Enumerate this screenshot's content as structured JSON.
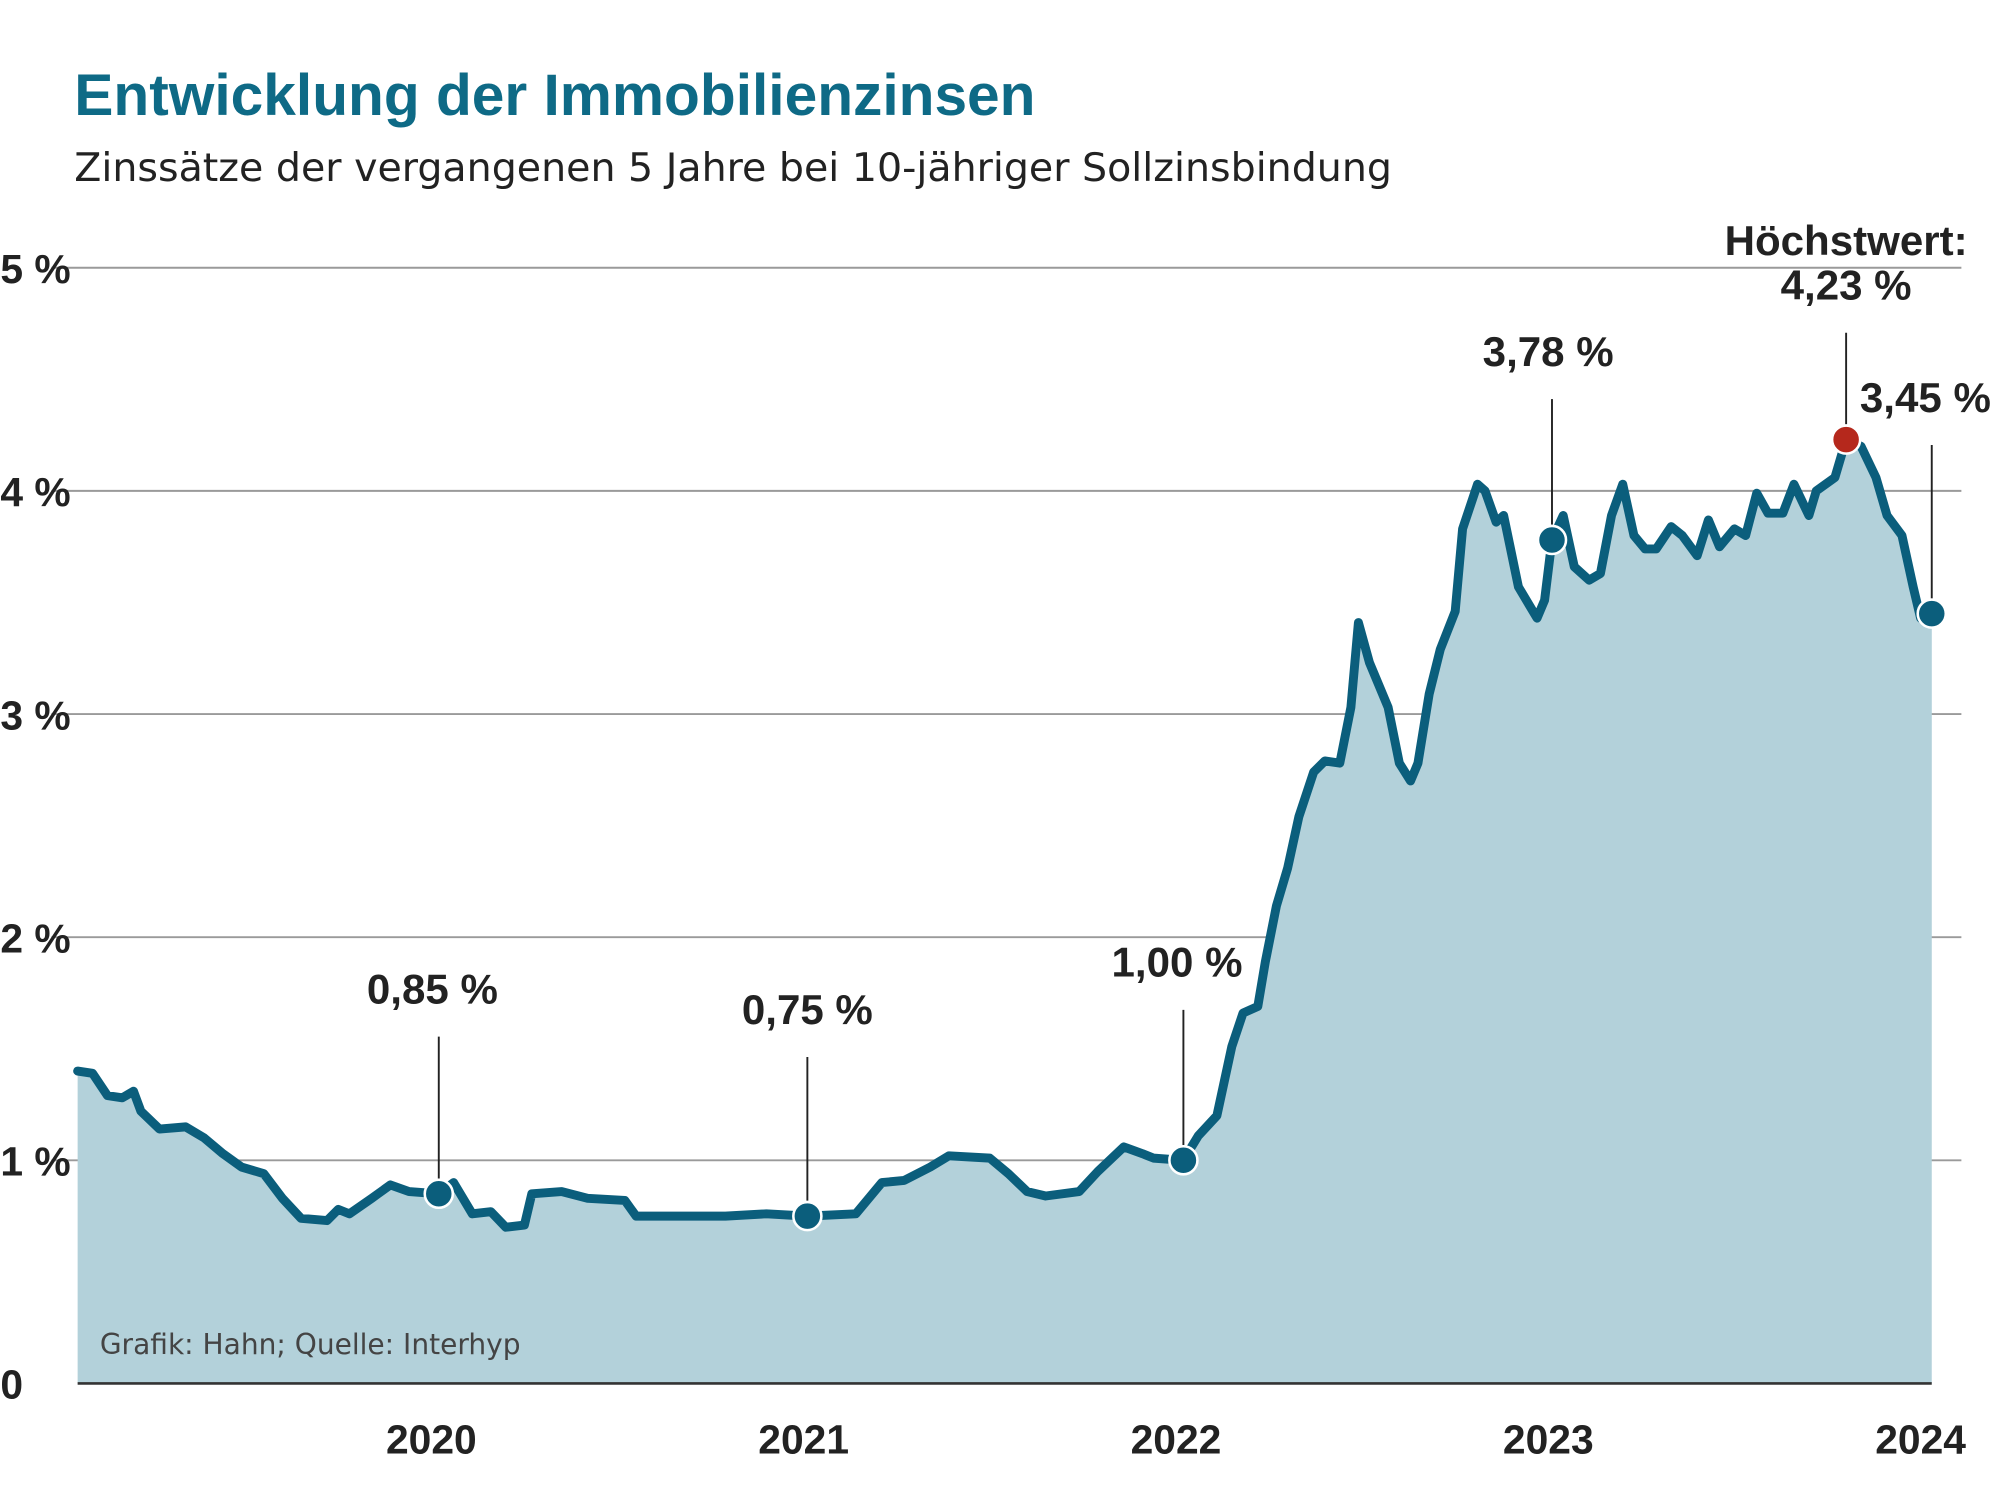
{
  "chart_data": {
    "type": "area",
    "title": "Entwicklung der Immobilienzinsen",
    "subtitle": "Zinssätze der vergangenen 5 Jahre bei 10-jähriger Sollzinsbindung",
    "source": "Grafik: Hahn; Quelle: Interhyp",
    "xlabel": "",
    "ylabel": "",
    "x_unit": "year",
    "xlim": [
      2019.05,
      2024.1
    ],
    "ylim": [
      0,
      5
    ],
    "grid": true,
    "x_ticks": [
      {
        "value": 2020,
        "label": "2020"
      },
      {
        "value": 2021,
        "label": "2021"
      },
      {
        "value": 2022,
        "label": "2022"
      },
      {
        "value": 2023,
        "label": "2023"
      },
      {
        "value": 2024,
        "label": "2024"
      }
    ],
    "y_ticks": [
      {
        "value": 0,
        "label": "0"
      },
      {
        "value": 1,
        "label": "1 %"
      },
      {
        "value": 2,
        "label": "2 %"
      },
      {
        "value": 3,
        "label": "3 %"
      },
      {
        "value": 4,
        "label": "4 %"
      },
      {
        "value": 5,
        "label": "5 %"
      }
    ],
    "colors": {
      "title": "#0e6a86",
      "line": "#0b5e7c",
      "fill": "#b3d1da",
      "grid": "#9a9a9a",
      "highlight": "#b5281c"
    },
    "series": [
      {
        "x": [
          2019.05,
          2019.09,
          2019.13,
          2019.17,
          2019.2,
          2019.22,
          2019.27,
          2019.34,
          2019.39,
          2019.44,
          2019.49,
          2019.55,
          2019.6,
          2019.65,
          2019.72,
          2019.75,
          2019.78,
          2019.84,
          2019.89,
          2019.94,
          2020.02,
          2020.06,
          2020.11,
          2020.16,
          2020.2,
          2020.25,
          2020.27,
          2020.35,
          2020.42,
          2020.52,
          2020.55,
          2020.66,
          2020.79,
          2020.9,
          2021.01,
          2021.14,
          2021.21,
          2021.27,
          2021.34,
          2021.39,
          2021.5,
          2021.55,
          2021.6,
          2021.65,
          2021.74,
          2021.79,
          2021.86,
          2021.91,
          2021.94,
          2022.02,
          2022.06,
          2022.11,
          2022.15,
          2022.18,
          2022.22,
          2022.24,
          2022.27,
          2022.3,
          2022.33,
          2022.37,
          2022.4,
          2022.44,
          2022.47,
          2022.49,
          2022.52,
          2022.57,
          2022.6,
          2022.63,
          2022.65,
          2022.68,
          2022.71,
          2022.75,
          2022.77,
          2022.81,
          2022.83,
          2022.86,
          2022.88,
          2022.92,
          2022.97,
          2022.99,
          2023.01,
          2023.04,
          2023.07,
          2023.11,
          2023.14,
          2023.17,
          2023.2,
          2023.23,
          2023.26,
          2023.29,
          2023.33,
          2023.36,
          2023.4,
          2023.43,
          2023.46,
          2023.5,
          2023.53,
          2023.56,
          2023.59,
          2023.63,
          2023.66,
          2023.7,
          2023.72,
          2023.77,
          2023.8,
          2023.84,
          2023.88,
          2023.91,
          2023.95,
          2023.98,
          2024.0,
          2024.03
        ],
        "values": [
          1.4,
          1.39,
          1.29,
          1.28,
          1.31,
          1.22,
          1.14,
          1.15,
          1.1,
          1.03,
          0.97,
          0.94,
          0.83,
          0.74,
          0.73,
          0.78,
          0.76,
          0.83,
          0.89,
          0.86,
          0.85,
          0.9,
          0.76,
          0.77,
          0.7,
          0.71,
          0.85,
          0.86,
          0.83,
          0.82,
          0.75,
          0.75,
          0.75,
          0.76,
          0.75,
          0.76,
          0.9,
          0.91,
          0.97,
          1.02,
          1.01,
          0.94,
          0.86,
          0.84,
          0.86,
          0.95,
          1.06,
          1.03,
          1.01,
          1.0,
          1.11,
          1.2,
          1.51,
          1.66,
          1.69,
          1.89,
          2.14,
          2.31,
          2.54,
          2.74,
          2.79,
          2.78,
          3.03,
          3.41,
          3.23,
          3.03,
          2.78,
          2.7,
          2.78,
          3.09,
          3.29,
          3.46,
          3.83,
          4.03,
          4.0,
          3.86,
          3.89,
          3.57,
          3.43,
          3.51,
          3.78,
          3.89,
          3.66,
          3.6,
          3.63,
          3.89,
          4.03,
          3.8,
          3.74,
          3.74,
          3.84,
          3.8,
          3.71,
          3.87,
          3.75,
          3.83,
          3.8,
          3.99,
          3.9,
          3.9,
          4.03,
          3.89,
          4.0,
          4.06,
          4.23,
          4.2,
          4.06,
          3.89,
          3.8,
          3.57,
          3.43,
          3.45
        ]
      }
    ],
    "annotations": [
      {
        "x": 2020.02,
        "value": 0.85,
        "label": "0,85 %",
        "highlight": false
      },
      {
        "x": 2021.01,
        "value": 0.75,
        "label": "0,75 %",
        "highlight": false
      },
      {
        "x": 2022.02,
        "value": 1.0,
        "label": "1,00 %",
        "highlight": false
      },
      {
        "x": 2023.01,
        "value": 3.78,
        "label": "3,78 %",
        "highlight": false
      },
      {
        "x": 2023.8,
        "value": 4.23,
        "label": "4,23 %",
        "prefix": "Höchstwert:",
        "highlight": true
      },
      {
        "x": 2024.03,
        "value": 3.45,
        "label": "3,45 %",
        "highlight": false
      }
    ]
  }
}
